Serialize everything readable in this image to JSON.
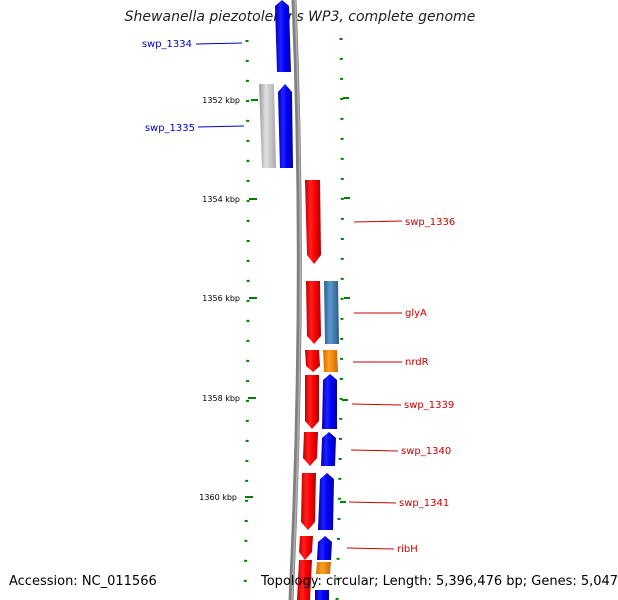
{
  "title": "Shewanella piezotolerans WP3, complete genome",
  "accession": "Accession: NC_011566",
  "summary": "Topology: circular; Length: 5,396,476 bp; Genes: 5,047",
  "ticks": [
    {
      "label": "1352 kbp"
    },
    {
      "label": "1354 kbp"
    },
    {
      "label": "1356 kbp"
    },
    {
      "label": "1358 kbp"
    },
    {
      "label": "1360 kbp"
    }
  ],
  "labels": [
    {
      "text": "swp_1334",
      "color": "#0000cc"
    },
    {
      "text": "swp_1335",
      "color": "#0000cc"
    },
    {
      "text": "swp_1336",
      "color": "#cc0000"
    },
    {
      "text": "glyA",
      "color": "#cc0000"
    },
    {
      "text": "nrdR",
      "color": "#cc0000"
    },
    {
      "text": "swp_1339",
      "color": "#cc0000"
    },
    {
      "text": "swp_1340",
      "color": "#cc0000"
    },
    {
      "text": "swp_1341",
      "color": "#cc0000"
    },
    {
      "text": "ribH",
      "color": "#cc0000"
    }
  ],
  "colors": {
    "forward": "#ff0000",
    "reverse": "#0000ff",
    "grey_feature": "#c8c8c8",
    "steelblue_feature": "#4682b4",
    "orange_feature": "#ff8c00",
    "tick": "#008000",
    "backbone": "#808080"
  }
}
